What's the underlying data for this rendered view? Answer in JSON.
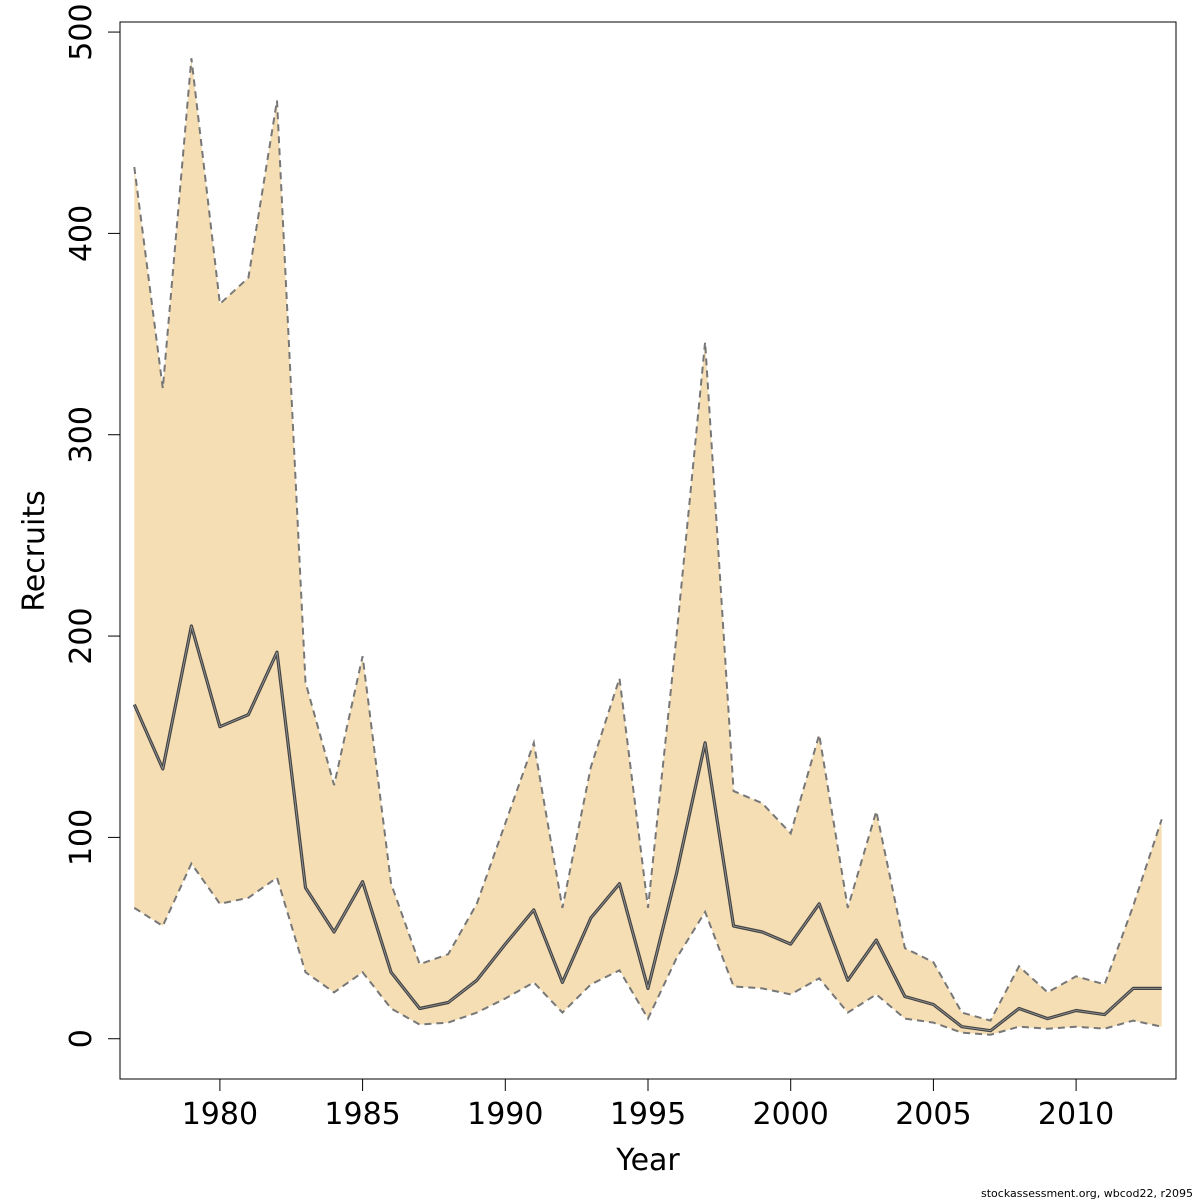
{
  "chart_data": {
    "type": "area",
    "xlabel": "Year",
    "ylabel": "Recruits",
    "xlim": [
      1976.5,
      2013.5
    ],
    "ylim": [
      -20,
      505
    ],
    "x_ticks": [
      1980,
      1985,
      1990,
      1995,
      2000,
      2005,
      2010
    ],
    "y_ticks": [
      0,
      100,
      200,
      300,
      400,
      500
    ],
    "grid": false,
    "band_color": "#f5deb3",
    "line_color": "#444444",
    "bound_color": "#777777",
    "x": [
      1977,
      1978,
      1979,
      1980,
      1981,
      1982,
      1983,
      1984,
      1985,
      1986,
      1987,
      1988,
      1989,
      1990,
      1991,
      1992,
      1993,
      1994,
      1995,
      1996,
      1997,
      1998,
      1999,
      2000,
      2001,
      2002,
      2003,
      2004,
      2005,
      2006,
      2007,
      2008,
      2009,
      2010,
      2011,
      2012,
      2013
    ],
    "series": [
      {
        "role": "upper",
        "values": [
          433,
          323,
          487,
          365,
          378,
          466,
          177,
          126,
          190,
          77,
          37,
          42,
          67,
          107,
          147,
          65,
          135,
          179,
          65,
          200,
          346,
          123,
          117,
          102,
          151,
          65,
          113,
          45,
          38,
          13,
          9,
          36,
          23,
          31,
          27,
          66,
          109
        ]
      },
      {
        "role": "estimate",
        "values": [
          166,
          134,
          205,
          155,
          161,
          192,
          75,
          53,
          78,
          33,
          15,
          18,
          29,
          47,
          64,
          28,
          60,
          77,
          25,
          82,
          147,
          56,
          53,
          47,
          67,
          29,
          49,
          21,
          17,
          6,
          4,
          15,
          10,
          14,
          12,
          25,
          25
        ]
      },
      {
        "role": "lower",
        "values": [
          65,
          56,
          87,
          67,
          70,
          80,
          33,
          23,
          33,
          15,
          7,
          8,
          13,
          20,
          28,
          13,
          27,
          34,
          10,
          40,
          63,
          26,
          25,
          22,
          30,
          13,
          22,
          10,
          8,
          3,
          2,
          6,
          5,
          6,
          5,
          9,
          6
        ]
      }
    ]
  },
  "credit": "stockassessment.org, wbcod22, r2095"
}
